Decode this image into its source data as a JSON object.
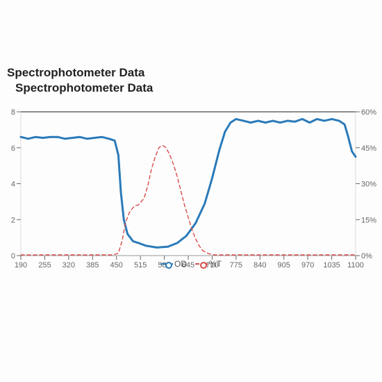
{
  "title_line1": "Spectrophotometer Data",
  "title_line2": "Spectrophotometer Data",
  "title_fontsize": 17,
  "title_weight": 600,
  "chart": {
    "type": "line",
    "background_color": "#ffffff",
    "plot_top_border_color": "#4a4a4a",
    "axis_text_color": "#666666",
    "axis_fontsize": 11,
    "x": {
      "min": 190,
      "max": 1100,
      "ticks": [
        190,
        255,
        320,
        385,
        450,
        515,
        580,
        645,
        710,
        775,
        840,
        905,
        970,
        1035,
        1100
      ],
      "tick_len": 6
    },
    "y_left": {
      "min": 0,
      "max": 8,
      "ticks": [
        0,
        2,
        4,
        6,
        8
      ],
      "tick_len": 6
    },
    "y_right": {
      "min": 0,
      "max": 60,
      "ticks": [
        0,
        15,
        30,
        45,
        60
      ],
      "suffix": "%",
      "tick_len": 6
    },
    "series": [
      {
        "name": "OD",
        "axis": "left",
        "color": "#2a7ab9",
        "line_width": 3,
        "dash": "none",
        "marker": "circle",
        "marker_size": 5,
        "data": [
          [
            190,
            6.6
          ],
          [
            210,
            6.5
          ],
          [
            230,
            6.6
          ],
          [
            250,
            6.55
          ],
          [
            270,
            6.6
          ],
          [
            290,
            6.6
          ],
          [
            310,
            6.5
          ],
          [
            330,
            6.55
          ],
          [
            350,
            6.6
          ],
          [
            370,
            6.5
          ],
          [
            390,
            6.55
          ],
          [
            410,
            6.6
          ],
          [
            430,
            6.5
          ],
          [
            445,
            6.4
          ],
          [
            455,
            5.6
          ],
          [
            462,
            3.5
          ],
          [
            470,
            2.0
          ],
          [
            480,
            1.2
          ],
          [
            495,
            0.8
          ],
          [
            510,
            0.7
          ],
          [
            530,
            0.55
          ],
          [
            560,
            0.45
          ],
          [
            590,
            0.5
          ],
          [
            615,
            0.7
          ],
          [
            640,
            1.1
          ],
          [
            665,
            1.8
          ],
          [
            690,
            2.9
          ],
          [
            710,
            4.3
          ],
          [
            730,
            5.9
          ],
          [
            745,
            6.9
          ],
          [
            760,
            7.4
          ],
          [
            775,
            7.6
          ],
          [
            795,
            7.5
          ],
          [
            815,
            7.4
          ],
          [
            835,
            7.5
          ],
          [
            855,
            7.4
          ],
          [
            875,
            7.5
          ],
          [
            895,
            7.4
          ],
          [
            915,
            7.5
          ],
          [
            935,
            7.45
          ],
          [
            955,
            7.6
          ],
          [
            975,
            7.4
          ],
          [
            995,
            7.6
          ],
          [
            1015,
            7.5
          ],
          [
            1035,
            7.6
          ],
          [
            1055,
            7.5
          ],
          [
            1070,
            7.3
          ],
          [
            1080,
            6.6
          ],
          [
            1090,
            5.8
          ],
          [
            1100,
            5.5
          ]
        ]
      },
      {
        "name": "%T",
        "axis": "right",
        "color": "#d94a4a",
        "line_width": 1.4,
        "dash": "5,4",
        "marker": "circle",
        "marker_size": 4,
        "data": [
          [
            190,
            0.3
          ],
          [
            250,
            0.3
          ],
          [
            320,
            0.3
          ],
          [
            385,
            0.3
          ],
          [
            440,
            0.3
          ],
          [
            455,
            1
          ],
          [
            465,
            6
          ],
          [
            475,
            14
          ],
          [
            485,
            18
          ],
          [
            495,
            20
          ],
          [
            502,
            21
          ],
          [
            508,
            21
          ],
          [
            515,
            22
          ],
          [
            525,
            24
          ],
          [
            535,
            29
          ],
          [
            545,
            36
          ],
          [
            555,
            41
          ],
          [
            565,
            45
          ],
          [
            575,
            46
          ],
          [
            585,
            45
          ],
          [
            595,
            42
          ],
          [
            605,
            38
          ],
          [
            615,
            33
          ],
          [
            625,
            27
          ],
          [
            635,
            21
          ],
          [
            645,
            16
          ],
          [
            655,
            11
          ],
          [
            665,
            7
          ],
          [
            675,
            4
          ],
          [
            685,
            2
          ],
          [
            700,
            0.8
          ],
          [
            715,
            0.3
          ],
          [
            775,
            0.3
          ],
          [
            900,
            0.3
          ],
          [
            1100,
            0.3
          ]
        ]
      }
    ],
    "legend": {
      "items": [
        {
          "label": "OD",
          "color": "#2a7ab9",
          "dash": "none"
        },
        {
          "label": "%T",
          "color": "#d94a4a",
          "dash": "5,4"
        }
      ]
    }
  }
}
